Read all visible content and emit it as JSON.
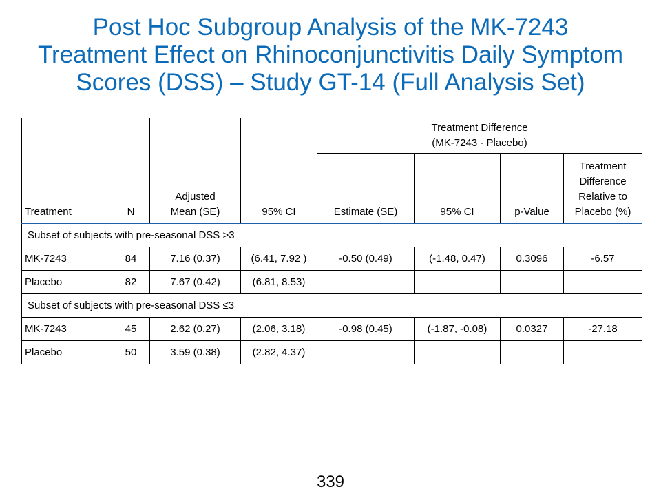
{
  "title": {
    "line1": "Post Hoc Subgroup Analysis of the MK-7243",
    "line2": "Treatment Effect on Rhinoconjunctivitis Daily Symptom",
    "line3": "Scores (DSS) – Study GT-14 (Full Analysis Set)"
  },
  "table": {
    "group_header_line1": "Treatment Difference",
    "group_header_line2": "(MK-7243 - Placebo)",
    "headers": {
      "treatment": "Treatment",
      "n": "N",
      "adj_mean_line1": "Adjusted",
      "adj_mean_line2": "Mean (SE)",
      "ci": "95% CI",
      "estimate": "Estimate (SE)",
      "diff_ci": "95% CI",
      "p_value": "p-Value",
      "relative_line1": "Treatment",
      "relative_line2": "Difference",
      "relative_line3": "Relative to",
      "relative_line4": "Placebo (%)"
    },
    "subsets": [
      {
        "label": "Subset of subjects with pre-seasonal DSS >3",
        "rows": [
          {
            "treatment": "MK-7243",
            "n": "84",
            "adj_mean": "7.16 (0.37)",
            "ci": "(6.41, 7.92 )",
            "estimate": "-0.50 (0.49)",
            "diff_ci": "(-1.48, 0.47)",
            "p_value": "0.3096",
            "relative": "-6.57"
          },
          {
            "treatment": "Placebo",
            "n": "82",
            "adj_mean": "7.67 (0.42)",
            "ci": "(6.81, 8.53)",
            "estimate": "",
            "diff_ci": "",
            "p_value": "",
            "relative": ""
          }
        ]
      },
      {
        "label": "Subset of subjects with pre-seasonal DSS ≤3",
        "rows": [
          {
            "treatment": "MK-7243",
            "n": "45",
            "adj_mean": "2.62 (0.27)",
            "ci": "(2.06, 3.18)",
            "estimate": "-0.98 (0.45)",
            "diff_ci": "(-1.87, -0.08)",
            "p_value": "0.0327",
            "relative": "-27.18"
          },
          {
            "treatment": "Placebo",
            "n": "50",
            "adj_mean": "3.59 (0.38)",
            "ci": "(2.82, 4.37)",
            "estimate": "",
            "diff_ci": "",
            "p_value": "",
            "relative": ""
          }
        ]
      }
    ]
  },
  "page_number": "339"
}
